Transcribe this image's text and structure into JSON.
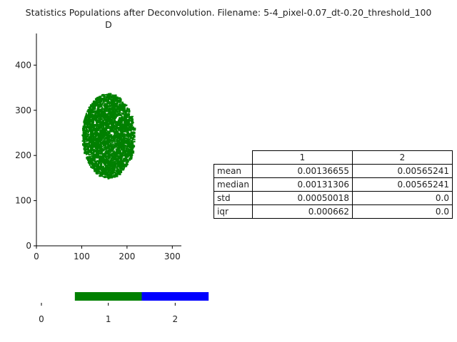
{
  "figure": {
    "title": "Statistics Populations after Deconvolution. Filename: 5-4_pixel-0.07_dt-0.20_threshold_100"
  },
  "chart_data": [
    {
      "type": "scatter",
      "title": "D",
      "xlabel": "",
      "ylabel": "",
      "xlim": [
        0,
        320
      ],
      "ylim": [
        0,
        470
      ],
      "xticks": [
        "0",
        "100",
        "200",
        "300"
      ],
      "yticks": [
        "0",
        "100",
        "200",
        "300",
        "400"
      ],
      "grid": false,
      "series": [
        {
          "region": "ellipse",
          "center": [
            157,
            245
          ],
          "semi_axes": [
            115,
            187
          ],
          "color": "#008000"
        }
      ]
    },
    {
      "type": "bar",
      "title": "",
      "categories": [
        "1",
        "2"
      ],
      "values": [
        1,
        1
      ],
      "colors": [
        "#008000",
        "#0000ff"
      ],
      "xticks": [
        "0",
        "1",
        "2"
      ],
      "grid": false
    },
    {
      "type": "table",
      "columns": [
        "1",
        "2"
      ],
      "rows": [
        {
          "label": "mean",
          "values": [
            "0.00136655",
            "0.00565241"
          ]
        },
        {
          "label": "median",
          "values": [
            "0.00131306",
            "0.00565241"
          ]
        },
        {
          "label": "std",
          "values": [
            "0.00050018",
            "0.0"
          ]
        },
        {
          "label": "iqr",
          "values": [
            "0.000662",
            "0.0"
          ]
        }
      ]
    }
  ]
}
